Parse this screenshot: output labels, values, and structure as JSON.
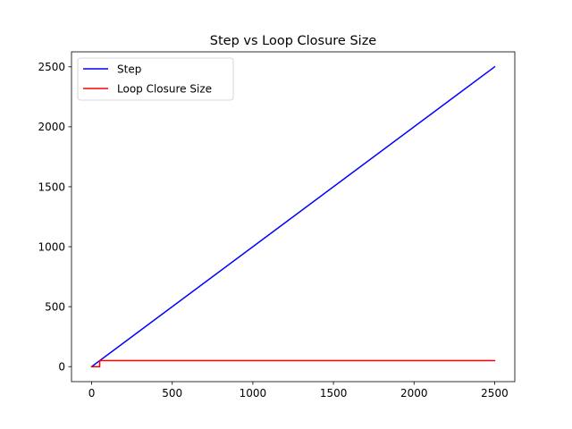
{
  "chart_data": {
    "type": "line",
    "title": "Step vs Loop Closure Size",
    "xlabel": "",
    "ylabel": "",
    "xlim": [
      -125,
      2625
    ],
    "ylim": [
      -125,
      2625
    ],
    "xticks": [
      0,
      500,
      1000,
      1500,
      2000,
      2500
    ],
    "yticks": [
      0,
      500,
      1000,
      1500,
      2000,
      2500
    ],
    "xtick_labels": [
      "0",
      "500",
      "1000",
      "1500",
      "2000",
      "2500"
    ],
    "ytick_labels": [
      "0",
      "500",
      "1000",
      "1500",
      "2000",
      "2500"
    ],
    "grid": false,
    "legend_position": "top-left",
    "series": [
      {
        "name": "Step",
        "color": "#0000ff",
        "x": [
          0,
          2500
        ],
        "y": [
          0,
          2500
        ]
      },
      {
        "name": "Loop Closure Size",
        "color": "#ff0000",
        "x": [
          0,
          50,
          50,
          50,
          2500
        ],
        "y": [
          0,
          0,
          15,
          50,
          50
        ]
      }
    ]
  }
}
